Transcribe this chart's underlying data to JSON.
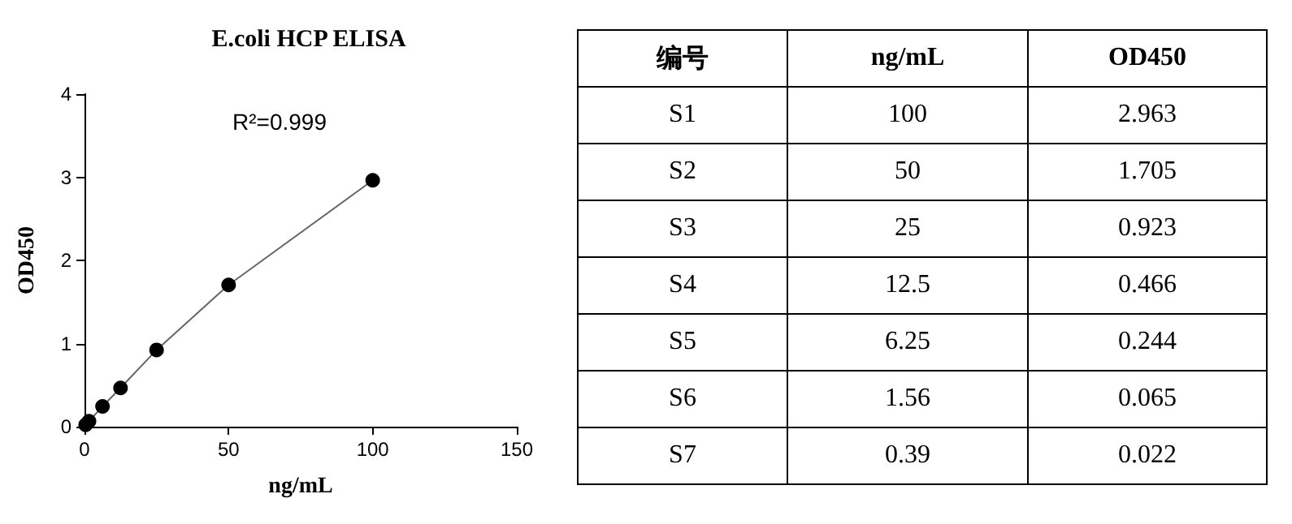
{
  "chart_data": [
    {
      "type": "line",
      "title": "E.coli HCP ELISA",
      "xlabel": "ng/mL",
      "ylabel": "OD450",
      "x": [
        100,
        50,
        25,
        12.5,
        6.25,
        1.56,
        0.39
      ],
      "series": [
        {
          "color": "#000000",
          "values": [
            2.963,
            1.705,
            0.923,
            0.466,
            0.244,
            0.065,
            0.022
          ]
        }
      ],
      "xlim": [
        0,
        150
      ],
      "xticks": [
        0,
        50,
        100,
        150
      ],
      "ylim": [
        0,
        4
      ],
      "yticks": [
        0,
        1,
        2,
        3,
        4
      ],
      "marker": "circle",
      "line_style": "solid",
      "annotations": [
        "R²=0.999"
      ]
    },
    {
      "type": "other",
      "annotations": [
        "编号",
        "ng/mL",
        "OD450",
        "S1",
        "100",
        "2.963",
        "S2",
        "50",
        "1.705",
        "S3",
        "25",
        "0.923",
        "S4",
        "12.5",
        "0.466",
        "S5",
        "6.25",
        "0.244",
        "S6",
        "1.56",
        "0.065",
        "S7",
        "0.39",
        "0.022"
      ]
    }
  ]
}
